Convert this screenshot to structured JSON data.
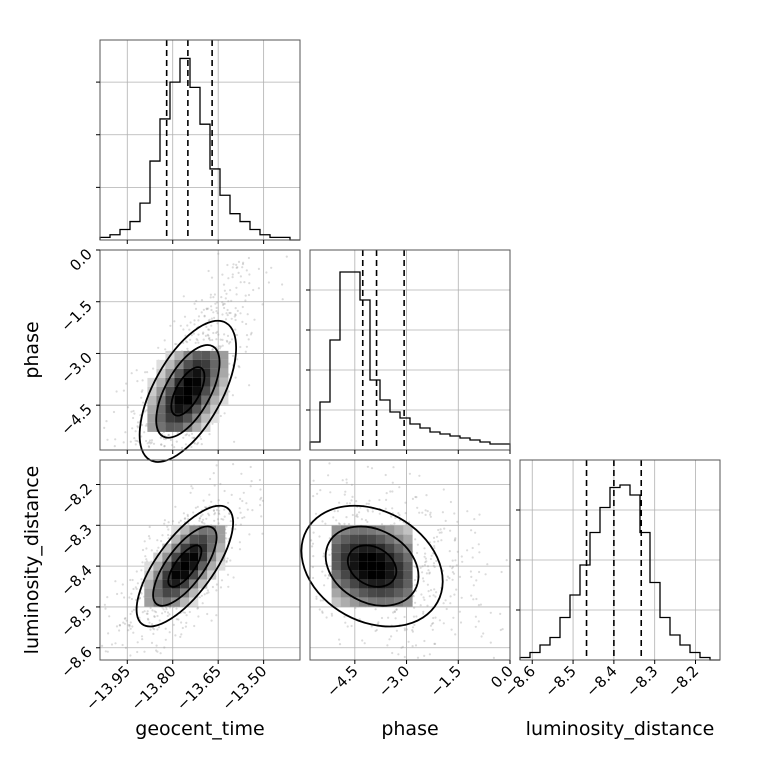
{
  "chart_data": {
    "type": "corner",
    "parameters": [
      "geocent_time",
      "phase",
      "luminosity_distance"
    ],
    "grid": true,
    "axes": {
      "geocent_time": {
        "range": [
          -14.04,
          -13.38
        ],
        "ticks": [
          -13.95,
          -13.8,
          -13.65,
          -13.5
        ],
        "tick_labels": [
          "−13.95",
          "−13.80",
          "−13.65",
          "−13.50"
        ]
      },
      "phase": {
        "range": [
          -5.8,
          0.0
        ],
        "ticks": [
          -4.5,
          -3.0,
          -1.5,
          0.0
        ],
        "tick_labels": [
          "−4.5",
          "−3.0",
          "−1.5",
          "0.0"
        ]
      },
      "luminosity_distance": {
        "range": [
          -8.63,
          -8.14
        ],
        "ticks": [
          -8.6,
          -8.5,
          -8.4,
          -8.3,
          -8.2
        ],
        "tick_labels": [
          "−8.6",
          "−8.5",
          "−8.4",
          "−8.3",
          "−8.2"
        ]
      }
    },
    "marginals": {
      "geocent_time": {
        "counts": [
          1,
          2,
          4,
          7,
          14,
          30,
          46,
          60,
          69,
          58,
          44,
          27,
          17,
          10,
          7,
          4,
          2,
          1,
          1,
          0
        ],
        "quantiles": [
          -13.82,
          -13.75,
          -13.67
        ],
        "ymax": 76
      },
      "phase": {
        "counts": [
          4,
          24,
          55,
          89,
          89,
          75,
          35,
          25,
          19,
          16,
          13,
          11,
          9,
          8,
          7,
          6,
          5,
          4,
          3,
          3
        ],
        "quantiles": [
          -4.27,
          -3.87,
          -3.07
        ],
        "ymax": 100
      },
      "luminosity_distance": {
        "counts": [
          1,
          3,
          6,
          9,
          17,
          26,
          38,
          51,
          61,
          69,
          70,
          66,
          51,
          31,
          17,
          10,
          6,
          3,
          1,
          0
        ],
        "quantiles": [
          -8.467,
          -8.4,
          -8.333
        ],
        "ymax": 80
      }
    },
    "joint": {
      "phase_vs_geocent_time": {
        "center": [
          -13.75,
          -4.1
        ],
        "sd": [
          0.07,
          0.9
        ],
        "correlation": 0.62
      },
      "luminosity_distance_vs_geocent_time": {
        "center": [
          -13.76,
          -8.4
        ],
        "sd": [
          0.07,
          0.065
        ],
        "correlation": 0.72
      },
      "luminosity_distance_vs_phase": {
        "center": [
          -4.0,
          -8.4
        ],
        "sd": [
          0.9,
          0.065
        ],
        "correlation": -0.25
      }
    }
  }
}
